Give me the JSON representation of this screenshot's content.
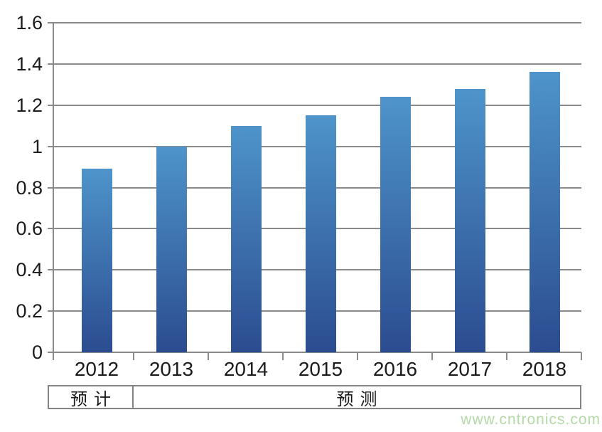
{
  "chart_data": {
    "type": "bar",
    "categories": [
      "2012",
      "2013",
      "2014",
      "2015",
      "2016",
      "2017",
      "2018"
    ],
    "values": [
      0.89,
      1.0,
      1.1,
      1.15,
      1.24,
      1.28,
      1.36
    ],
    "title": "",
    "xlabel": "",
    "ylabel": "",
    "ylim": [
      0,
      1.6
    ],
    "ytick_step": 0.2,
    "ytick_labels_top_to_bottom": [
      "1.6",
      "1.4",
      "1.2",
      "1",
      "0.8",
      "0.6",
      "0.4",
      "0.2",
      "0"
    ],
    "grid": true,
    "legend": false,
    "bar_color_top": "#4e94cb",
    "bar_color_bottom": "#2b4c90"
  },
  "annotation_row": {
    "cells": [
      {
        "label": "预计",
        "spans_categories": [
          "2012"
        ]
      },
      {
        "label": "预测",
        "spans_categories": [
          "2013",
          "2014",
          "2015",
          "2016",
          "2017",
          "2018"
        ]
      }
    ]
  },
  "watermark": {
    "text": "www.cntronics.com",
    "color": "#b2daa5"
  },
  "colors": {
    "grid": "#8a8a8a",
    "text": "#1b1b1b"
  }
}
